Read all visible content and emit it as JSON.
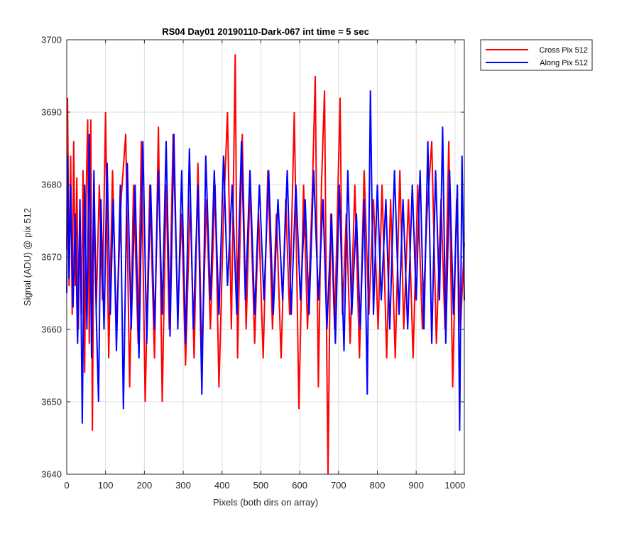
{
  "chart_data": {
    "type": "line",
    "title": "RS04 Day01 20190110-Dark-067 int time = 5 sec",
    "xlabel": "Pixels (both dirs on array)",
    "ylabel": "Signal (ADU) @ pix 512",
    "xlim": [
      0,
      1024
    ],
    "ylim": [
      3640,
      3700
    ],
    "xticks": [
      0,
      100,
      200,
      300,
      400,
      500,
      600,
      700,
      800,
      900,
      1000
    ],
    "yticks": [
      3640,
      3650,
      3660,
      3670,
      3680,
      3690,
      3700
    ],
    "grid": true,
    "legend_position": "outside-top-right",
    "series": [
      {
        "name": "Cross Pix 512",
        "color": "#ff0000",
        "points": [
          [
            0,
            3671
          ],
          [
            2,
            3692
          ],
          [
            6,
            3666
          ],
          [
            10,
            3684
          ],
          [
            14,
            3662
          ],
          [
            18,
            3686
          ],
          [
            22,
            3666
          ],
          [
            26,
            3681
          ],
          [
            30,
            3660
          ],
          [
            34,
            3676
          ],
          [
            38,
            3662
          ],
          [
            42,
            3682
          ],
          [
            46,
            3654
          ],
          [
            50,
            3678
          ],
          [
            54,
            3689
          ],
          [
            58,
            3658
          ],
          [
            62,
            3689
          ],
          [
            66,
            3646
          ],
          [
            70,
            3678
          ],
          [
            76,
            3663
          ],
          [
            84,
            3680
          ],
          [
            92,
            3664
          ],
          [
            100,
            3690
          ],
          [
            108,
            3656
          ],
          [
            118,
            3682
          ],
          [
            128,
            3660
          ],
          [
            140,
            3678
          ],
          [
            152,
            3687
          ],
          [
            162,
            3652
          ],
          [
            172,
            3680
          ],
          [
            184,
            3658
          ],
          [
            192,
            3686
          ],
          [
            202,
            3650
          ],
          [
            214,
            3680
          ],
          [
            226,
            3656
          ],
          [
            236,
            3688
          ],
          [
            246,
            3650
          ],
          [
            256,
            3680
          ],
          [
            264,
            3660
          ],
          [
            274,
            3687
          ],
          [
            286,
            3662
          ],
          [
            296,
            3676
          ],
          [
            306,
            3655
          ],
          [
            318,
            3678
          ],
          [
            328,
            3656
          ],
          [
            338,
            3683
          ],
          [
            348,
            3656
          ],
          [
            360,
            3678
          ],
          [
            370,
            3660
          ],
          [
            382,
            3680
          ],
          [
            392,
            3652
          ],
          [
            404,
            3676
          ],
          [
            414,
            3690
          ],
          [
            424,
            3660
          ],
          [
            434,
            3698
          ],
          [
            440,
            3656
          ],
          [
            452,
            3687
          ],
          [
            462,
            3660
          ],
          [
            472,
            3680
          ],
          [
            484,
            3658
          ],
          [
            494,
            3676
          ],
          [
            506,
            3656
          ],
          [
            518,
            3682
          ],
          [
            530,
            3660
          ],
          [
            540,
            3676
          ],
          [
            552,
            3656
          ],
          [
            564,
            3678
          ],
          [
            574,
            3662
          ],
          [
            586,
            3690
          ],
          [
            598,
            3649
          ],
          [
            610,
            3680
          ],
          [
            620,
            3660
          ],
          [
            632,
            3678
          ],
          [
            640,
            3695
          ],
          [
            648,
            3652
          ],
          [
            656,
            3680
          ],
          [
            664,
            3693
          ],
          [
            670,
            3655
          ],
          [
            673,
            3640
          ],
          [
            680,
            3676
          ],
          [
            690,
            3660
          ],
          [
            698,
            3678
          ],
          [
            704,
            3692
          ],
          [
            710,
            3662
          ],
          [
            720,
            3676
          ],
          [
            730,
            3658
          ],
          [
            742,
            3680
          ],
          [
            754,
            3656
          ],
          [
            766,
            3682
          ],
          [
            778,
            3662
          ],
          [
            790,
            3678
          ],
          [
            802,
            3660
          ],
          [
            812,
            3680
          ],
          [
            824,
            3656
          ],
          [
            834,
            3678
          ],
          [
            846,
            3656
          ],
          [
            858,
            3682
          ],
          [
            868,
            3660
          ],
          [
            880,
            3678
          ],
          [
            892,
            3656
          ],
          [
            904,
            3680
          ],
          [
            916,
            3660
          ],
          [
            928,
            3676
          ],
          [
            940,
            3686
          ],
          [
            952,
            3658
          ],
          [
            964,
            3678
          ],
          [
            974,
            3660
          ],
          [
            984,
            3686
          ],
          [
            994,
            3652
          ],
          [
            1004,
            3678
          ],
          [
            1014,
            3660
          ],
          [
            1024,
            3672
          ]
        ]
      },
      {
        "name": "Along Pix 512",
        "color": "#0000ff",
        "points": [
          [
            0,
            3665
          ],
          [
            2,
            3684
          ],
          [
            6,
            3667
          ],
          [
            10,
            3680
          ],
          [
            16,
            3663
          ],
          [
            22,
            3676
          ],
          [
            28,
            3658
          ],
          [
            34,
            3678
          ],
          [
            40,
            3647
          ],
          [
            46,
            3680
          ],
          [
            52,
            3660
          ],
          [
            58,
            3687
          ],
          [
            64,
            3656
          ],
          [
            70,
            3682
          ],
          [
            76,
            3662
          ],
          [
            82,
            3650
          ],
          [
            88,
            3678
          ],
          [
            96,
            3660
          ],
          [
            104,
            3683
          ],
          [
            112,
            3662
          ],
          [
            120,
            3678
          ],
          [
            128,
            3657
          ],
          [
            138,
            3680
          ],
          [
            146,
            3649
          ],
          [
            156,
            3683
          ],
          [
            166,
            3660
          ],
          [
            176,
            3680
          ],
          [
            186,
            3656
          ],
          [
            196,
            3686
          ],
          [
            206,
            3658
          ],
          [
            216,
            3680
          ],
          [
            226,
            3660
          ],
          [
            236,
            3682
          ],
          [
            246,
            3662
          ],
          [
            256,
            3686
          ],
          [
            266,
            3659
          ],
          [
            276,
            3687
          ],
          [
            286,
            3660
          ],
          [
            296,
            3682
          ],
          [
            306,
            3658
          ],
          [
            316,
            3685
          ],
          [
            326,
            3660
          ],
          [
            338,
            3680
          ],
          [
            348,
            3651
          ],
          [
            358,
            3684
          ],
          [
            370,
            3664
          ],
          [
            380,
            3682
          ],
          [
            392,
            3662
          ],
          [
            404,
            3684
          ],
          [
            414,
            3666
          ],
          [
            426,
            3680
          ],
          [
            438,
            3662
          ],
          [
            450,
            3686
          ],
          [
            460,
            3664
          ],
          [
            472,
            3682
          ],
          [
            484,
            3662
          ],
          [
            496,
            3680
          ],
          [
            508,
            3664
          ],
          [
            520,
            3682
          ],
          [
            532,
            3662
          ],
          [
            544,
            3678
          ],
          [
            556,
            3664
          ],
          [
            568,
            3682
          ],
          [
            578,
            3662
          ],
          [
            590,
            3680
          ],
          [
            602,
            3664
          ],
          [
            614,
            3678
          ],
          [
            624,
            3662
          ],
          [
            636,
            3682
          ],
          [
            648,
            3664
          ],
          [
            660,
            3678
          ],
          [
            670,
            3660
          ],
          [
            682,
            3676
          ],
          [
            692,
            3658
          ],
          [
            702,
            3680
          ],
          [
            714,
            3657
          ],
          [
            724,
            3682
          ],
          [
            734,
            3662
          ],
          [
            746,
            3676
          ],
          [
            756,
            3660
          ],
          [
            766,
            3678
          ],
          [
            774,
            3651
          ],
          [
            782,
            3693
          ],
          [
            790,
            3662
          ],
          [
            800,
            3680
          ],
          [
            810,
            3664
          ],
          [
            822,
            3678
          ],
          [
            832,
            3660
          ],
          [
            844,
            3682
          ],
          [
            856,
            3662
          ],
          [
            866,
            3678
          ],
          [
            878,
            3660
          ],
          [
            890,
            3680
          ],
          [
            900,
            3664
          ],
          [
            910,
            3682
          ],
          [
            920,
            3660
          ],
          [
            930,
            3686
          ],
          [
            940,
            3658
          ],
          [
            950,
            3682
          ],
          [
            960,
            3664
          ],
          [
            968,
            3688
          ],
          [
            976,
            3658
          ],
          [
            986,
            3682
          ],
          [
            996,
            3662
          ],
          [
            1006,
            3680
          ],
          [
            1012,
            3646
          ],
          [
            1018,
            3684
          ],
          [
            1024,
            3664
          ]
        ]
      }
    ]
  }
}
